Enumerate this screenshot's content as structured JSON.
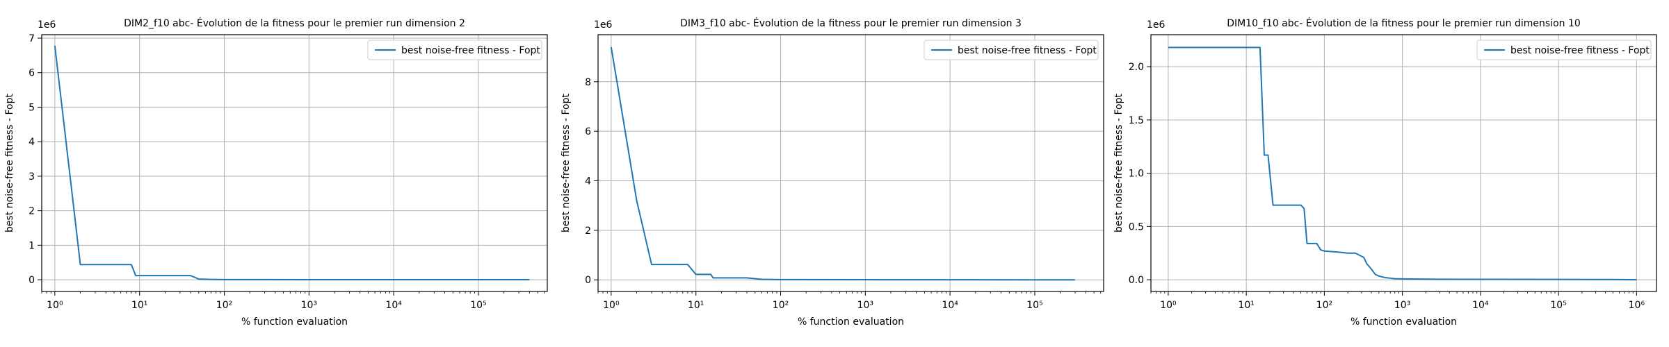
{
  "figure": {
    "background": "#ffffff",
    "line_color": "#1f77b4",
    "grid_color": "#b0b0b0"
  },
  "chart_data": [
    {
      "type": "line",
      "title": "DIM2_f10 abc- Évolution de la fitness pour le premier run dimension 2",
      "xlabel": "% function evaluation",
      "ylabel": "best noise-free fitness - Fopt",
      "xscale": "log",
      "xlim": [
        0.7,
        650000
      ],
      "ylim": [
        -0.34,
        7.1
      ],
      "y_multiplier_label": "1e6",
      "xticks": [
        1,
        10,
        100,
        1000,
        10000,
        100000
      ],
      "xtick_labels": [
        "10⁰",
        "10¹",
        "10²",
        "10³",
        "10⁴",
        "10⁵"
      ],
      "yticks": [
        0,
        1,
        2,
        3,
        4,
        5,
        6,
        7
      ],
      "ytick_labels": [
        "0",
        "1",
        "2",
        "3",
        "4",
        "5",
        "6",
        "7"
      ],
      "grid": true,
      "legend_position": "top-right",
      "series": [
        {
          "name": "best noise-free fitness - Fopt",
          "x": [
            1,
            2,
            3,
            8,
            9,
            10,
            40,
            50,
            70,
            100,
            1000,
            10000,
            100000,
            400000
          ],
          "y": [
            6.78,
            0.44,
            0.44,
            0.44,
            0.12,
            0.12,
            0.12,
            0.02,
            0.01,
            0.005,
            0.003,
            0.002,
            0.001,
            0.001
          ]
        }
      ]
    },
    {
      "type": "line",
      "title": "DIM3_f10 abc- Évolution de la fitness pour le premier run dimension 3",
      "xlabel": "% function evaluation",
      "ylabel": "best noise-free fitness - Fopt",
      "xscale": "log",
      "xlim": [
        0.7,
        650000
      ],
      "ylim": [
        -0.47,
        9.9
      ],
      "y_multiplier_label": "1e6",
      "xticks": [
        1,
        10,
        100,
        1000,
        10000,
        100000
      ],
      "xtick_labels": [
        "10⁰",
        "10¹",
        "10²",
        "10³",
        "10⁴",
        "10⁵"
      ],
      "yticks": [
        0,
        2,
        4,
        6,
        8
      ],
      "ytick_labels": [
        "0",
        "2",
        "4",
        "6",
        "8"
      ],
      "grid": true,
      "legend_position": "top-right",
      "series": [
        {
          "name": "best noise-free fitness - Fopt",
          "x": [
            1,
            2,
            3,
            8,
            10,
            15,
            16,
            40,
            60,
            100,
            1000,
            10000,
            100000,
            300000
          ],
          "y": [
            9.4,
            3.2,
            0.62,
            0.62,
            0.22,
            0.22,
            0.08,
            0.08,
            0.02,
            0.01,
            0.005,
            0.003,
            0.001,
            0.001
          ]
        }
      ]
    },
    {
      "type": "line",
      "title": "DIM10_f10 abc- Évolution de la fitness pour le premier run dimension 10",
      "xlabel": "% function evaluation",
      "ylabel": "best noise-free fitness - Fopt",
      "xscale": "log",
      "xlim": [
        0.6,
        1800000
      ],
      "ylim": [
        -0.11,
        2.3
      ],
      "y_multiplier_label": "1e6",
      "xticks": [
        1,
        10,
        100,
        1000,
        10000,
        100000,
        1000000
      ],
      "xtick_labels": [
        "10⁰",
        "10¹",
        "10²",
        "10³",
        "10⁴",
        "10⁵",
        "10⁶"
      ],
      "yticks": [
        0,
        0.5,
        1.0,
        1.5,
        2.0
      ],
      "ytick_labels": [
        "0.0",
        "0.5",
        "1.0",
        "1.5",
        "2.0"
      ],
      "grid": true,
      "legend_position": "top-right",
      "series": [
        {
          "name": "best noise-free fitness - Fopt",
          "x": [
            1,
            15,
            17,
            19,
            22,
            50,
            55,
            60,
            70,
            80,
            90,
            100,
            150,
            200,
            250,
            300,
            320,
            350,
            400,
            450,
            500,
            600,
            700,
            800,
            1000,
            3000,
            10000,
            100000,
            500000,
            1000000
          ],
          "y": [
            2.18,
            2.18,
            1.17,
            1.17,
            0.7,
            0.7,
            0.67,
            0.34,
            0.34,
            0.34,
            0.28,
            0.27,
            0.26,
            0.25,
            0.25,
            0.22,
            0.21,
            0.15,
            0.1,
            0.05,
            0.035,
            0.02,
            0.015,
            0.01,
            0.008,
            0.005,
            0.004,
            0.003,
            0.002,
            0.0
          ]
        }
      ]
    }
  ]
}
